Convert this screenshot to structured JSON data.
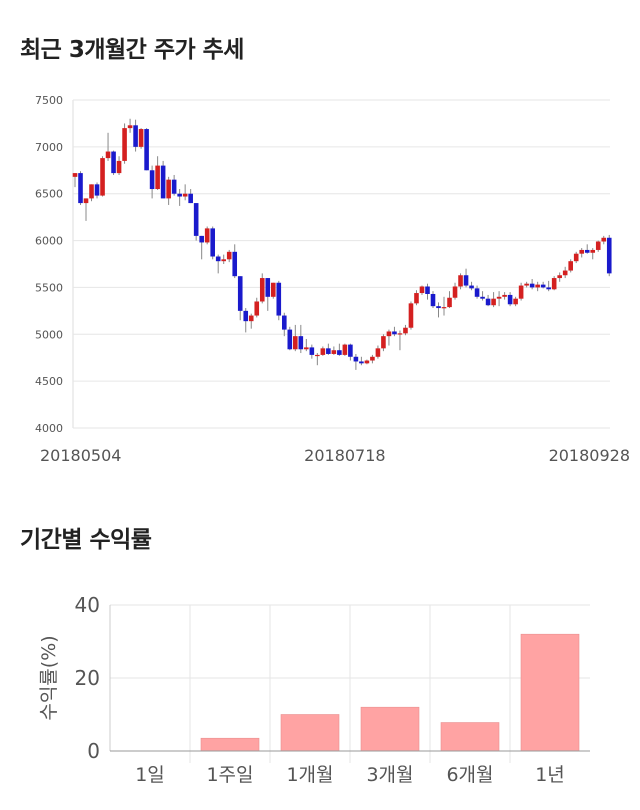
{
  "chart_data": [
    {
      "type": "candlestick",
      "title": "최근 3개월간 주가 추세",
      "ylim": [
        4000,
        7500
      ],
      "yticks": [
        "7500",
        "7000",
        "6500",
        "6000",
        "5500",
        "5000",
        "4500",
        "4000"
      ],
      "xticks": [
        {
          "index": 0,
          "label": "20180504"
        },
        {
          "index": 49,
          "label": "20180718"
        },
        {
          "index": 102,
          "label": "20180928"
        }
      ],
      "grid": true,
      "up_color": "#d42020",
      "down_color": "#1a1acc",
      "candles": [
        [
          6680,
          6720,
          6570,
          6720
        ],
        [
          6720,
          6740,
          6380,
          6400
        ],
        [
          6400,
          6450,
          6210,
          6450
        ],
        [
          6450,
          6600,
          6420,
          6600
        ],
        [
          6600,
          6620,
          6450,
          6480
        ],
        [
          6480,
          6900,
          6470,
          6880
        ],
        [
          6880,
          7150,
          6850,
          6950
        ],
        [
          6950,
          6960,
          6700,
          6720
        ],
        [
          6720,
          6900,
          6700,
          6850
        ],
        [
          6850,
          7250,
          6820,
          7200
        ],
        [
          7200,
          7300,
          7150,
          7230
        ],
        [
          7230,
          7290,
          6950,
          7000
        ],
        [
          7000,
          7200,
          6980,
          7190
        ],
        [
          7190,
          7200,
          6750,
          6750
        ],
        [
          6750,
          6800,
          6450,
          6550
        ],
        [
          6550,
          6900,
          6540,
          6800
        ],
        [
          6800,
          6850,
          6450,
          6450
        ],
        [
          6450,
          6680,
          6380,
          6650
        ],
        [
          6650,
          6700,
          6480,
          6500
        ],
        [
          6500,
          6550,
          6370,
          6470
        ],
        [
          6470,
          6600,
          6430,
          6500
        ],
        [
          6500,
          6550,
          6400,
          6400
        ],
        [
          6400,
          6400,
          6000,
          6050
        ],
        [
          6050,
          6050,
          5800,
          5980
        ],
        [
          5980,
          6150,
          5960,
          6130
        ],
        [
          6130,
          6150,
          5800,
          5830
        ],
        [
          5830,
          5850,
          5650,
          5780
        ],
        [
          5780,
          5850,
          5750,
          5800
        ],
        [
          5800,
          5900,
          5770,
          5880
        ],
        [
          5880,
          5960,
          5600,
          5620
        ],
        [
          5620,
          5620,
          5150,
          5250
        ],
        [
          5250,
          5280,
          5020,
          5140
        ],
        [
          5140,
          5220,
          5060,
          5200
        ],
        [
          5200,
          5390,
          5180,
          5350
        ],
        [
          5350,
          5650,
          5330,
          5600
        ],
        [
          5600,
          5600,
          5250,
          5400
        ],
        [
          5400,
          5550,
          5380,
          5550
        ],
        [
          5550,
          5570,
          5150,
          5200
        ],
        [
          5200,
          5230,
          4980,
          5050
        ],
        [
          5050,
          5080,
          4830,
          4840
        ],
        [
          4840,
          5100,
          4820,
          4980
        ],
        [
          4980,
          5100,
          4800,
          4840
        ],
        [
          4840,
          4950,
          4820,
          4860
        ],
        [
          4860,
          4890,
          4740,
          4780
        ],
        [
          4780,
          4800,
          4670,
          4780
        ],
        [
          4780,
          4870,
          4770,
          4850
        ],
        [
          4850,
          4900,
          4780,
          4790
        ],
        [
          4790,
          4870,
          4780,
          4830
        ],
        [
          4830,
          4900,
          4770,
          4780
        ],
        [
          4780,
          4900,
          4770,
          4890
        ],
        [
          4890,
          4900,
          4720,
          4760
        ],
        [
          4760,
          4790,
          4620,
          4710
        ],
        [
          4710,
          4760,
          4670,
          4690
        ],
        [
          4690,
          4730,
          4680,
          4720
        ],
        [
          4720,
          4780,
          4690,
          4760
        ],
        [
          4760,
          4880,
          4740,
          4850
        ],
        [
          4850,
          5000,
          4820,
          4980
        ],
        [
          4980,
          5050,
          4880,
          5030
        ],
        [
          5030,
          5080,
          4980,
          5000
        ],
        [
          5000,
          5040,
          4830,
          5010
        ],
        [
          5010,
          5100,
          4990,
          5070
        ],
        [
          5070,
          5350,
          5050,
          5330
        ],
        [
          5330,
          5470,
          5310,
          5440
        ],
        [
          5440,
          5520,
          5420,
          5510
        ],
        [
          5510,
          5540,
          5370,
          5430
        ],
        [
          5430,
          5460,
          5280,
          5300
        ],
        [
          5300,
          5340,
          5180,
          5280
        ],
        [
          5280,
          5400,
          5200,
          5290
        ],
        [
          5290,
          5460,
          5280,
          5390
        ],
        [
          5390,
          5550,
          5370,
          5510
        ],
        [
          5510,
          5650,
          5480,
          5630
        ],
        [
          5630,
          5700,
          5500,
          5520
        ],
        [
          5520,
          5560,
          5470,
          5490
        ],
        [
          5490,
          5520,
          5380,
          5400
        ],
        [
          5400,
          5460,
          5360,
          5380
        ],
        [
          5380,
          5420,
          5300,
          5310
        ],
        [
          5310,
          5450,
          5290,
          5380
        ],
        [
          5380,
          5460,
          5300,
          5400
        ],
        [
          5400,
          5450,
          5370,
          5420
        ],
        [
          5420,
          5450,
          5300,
          5320
        ],
        [
          5320,
          5400,
          5300,
          5380
        ],
        [
          5380,
          5550,
          5360,
          5520
        ],
        [
          5520,
          5560,
          5500,
          5540
        ],
        [
          5540,
          5590,
          5480,
          5500
        ],
        [
          5500,
          5560,
          5460,
          5530
        ],
        [
          5530,
          5560,
          5490,
          5500
        ],
        [
          5500,
          5570,
          5460,
          5480
        ],
        [
          5480,
          5620,
          5470,
          5600
        ],
        [
          5600,
          5660,
          5560,
          5630
        ],
        [
          5630,
          5720,
          5600,
          5680
        ],
        [
          5680,
          5800,
          5660,
          5780
        ],
        [
          5780,
          5880,
          5760,
          5860
        ],
        [
          5860,
          5920,
          5820,
          5900
        ],
        [
          5900,
          5960,
          5860,
          5870
        ],
        [
          5870,
          5920,
          5800,
          5900
        ],
        [
          5900,
          6000,
          5880,
          5990
        ],
        [
          5990,
          6050,
          5960,
          6030
        ],
        [
          6030,
          6060,
          5620,
          5650
        ]
      ]
    },
    {
      "type": "bar",
      "title": "기간별 수익률",
      "ylabel": "수익률(%)",
      "categories": [
        "1일",
        "1주일",
        "1개월",
        "3개월",
        "6개월",
        "1년"
      ],
      "values": [
        0,
        3.5,
        10,
        12,
        7.8,
        32
      ],
      "ylim": [
        0,
        40
      ],
      "yticks": [
        "40",
        "20",
        "0"
      ],
      "bar_color": "#ffa3a3",
      "grid": true
    }
  ]
}
